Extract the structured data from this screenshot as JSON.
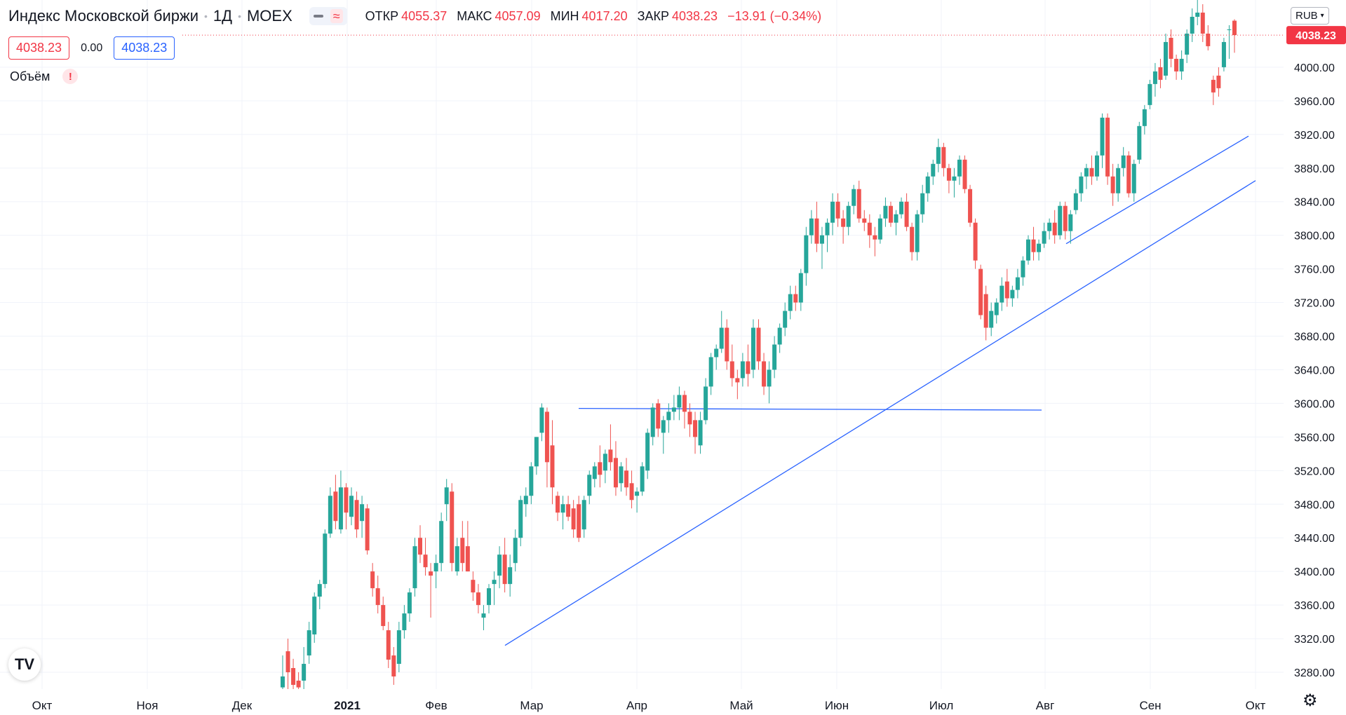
{
  "legend": {
    "title": "Индекс Московской биржи",
    "interval": "1Д",
    "exchange": "MOEX",
    "open_label": "ОТКР",
    "open": "4055.37",
    "high_label": "МАКС",
    "high": "4057.09",
    "low_label": "МИН",
    "low": "4017.20",
    "close_label": "ЗАКР",
    "close": "4038.23",
    "change": "−13.91 (−0.34%)",
    "bid": "4038.23",
    "spread": "0.00",
    "ask": "4038.23",
    "volume_label": "Объём",
    "warning_glyph": "!"
  },
  "toolbar": {
    "currency": "RUB",
    "logo": "TV",
    "settings_icon": "gear-icon"
  },
  "colors": {
    "up": "#26a69a",
    "down": "#ef5350",
    "trend": "#2962ff",
    "price_tag": "#f23645",
    "grid": "#f0f3fa"
  },
  "chart_data": {
    "type": "candlestick",
    "y_axis": {
      "min": 3260,
      "max": 4080,
      "ticks": [
        3280,
        3320,
        3360,
        3400,
        3440,
        3480,
        3520,
        3560,
        3600,
        3640,
        3680,
        3720,
        3760,
        3800,
        3840,
        3880,
        3920,
        3960,
        4000
      ]
    },
    "x_axis": {
      "labels": [
        "Окт",
        "Ноя",
        "Дек",
        "2021",
        "Фев",
        "Мар",
        "Апр",
        "Май",
        "Июн",
        "Июл",
        "Авг",
        "Сен",
        "Окт"
      ]
    },
    "last_price": "4038.23",
    "candles": [
      {
        "o": 3262,
        "h": 3300,
        "l": 3240,
        "c": 3275
      },
      {
        "o": 3305,
        "h": 3320,
        "l": 3250,
        "c": 3280
      },
      {
        "o": 3285,
        "h": 3296,
        "l": 3255,
        "c": 3265
      },
      {
        "o": 3270,
        "h": 3280,
        "l": 3250,
        "c": 3262
      },
      {
        "o": 3270,
        "h": 3310,
        "l": 3260,
        "c": 3290
      },
      {
        "o": 3300,
        "h": 3340,
        "l": 3290,
        "c": 3330
      },
      {
        "o": 3325,
        "h": 3375,
        "l": 3315,
        "c": 3370
      },
      {
        "o": 3370,
        "h": 3390,
        "l": 3355,
        "c": 3385
      },
      {
        "o": 3385,
        "h": 3450,
        "l": 3380,
        "c": 3445
      },
      {
        "o": 3445,
        "h": 3500,
        "l": 3440,
        "c": 3490
      },
      {
        "o": 3495,
        "h": 3515,
        "l": 3450,
        "c": 3460
      },
      {
        "o": 3450,
        "h": 3520,
        "l": 3445,
        "c": 3500
      },
      {
        "o": 3500,
        "h": 3505,
        "l": 3450,
        "c": 3470
      },
      {
        "o": 3465,
        "h": 3500,
        "l": 3455,
        "c": 3490
      },
      {
        "o": 3485,
        "h": 3495,
        "l": 3440,
        "c": 3450
      },
      {
        "o": 3460,
        "h": 3490,
        "l": 3440,
        "c": 3480
      },
      {
        "o": 3475,
        "h": 3480,
        "l": 3420,
        "c": 3425
      },
      {
        "o": 3400,
        "h": 3410,
        "l": 3370,
        "c": 3380
      },
      {
        "o": 3380,
        "h": 3395,
        "l": 3350,
        "c": 3360
      },
      {
        "o": 3360,
        "h": 3370,
        "l": 3330,
        "c": 3335
      },
      {
        "o": 3330,
        "h": 3340,
        "l": 3285,
        "c": 3295
      },
      {
        "o": 3300,
        "h": 3310,
        "l": 3265,
        "c": 3275
      },
      {
        "o": 3290,
        "h": 3340,
        "l": 3280,
        "c": 3330
      },
      {
        "o": 3330,
        "h": 3360,
        "l": 3320,
        "c": 3350
      },
      {
        "o": 3350,
        "h": 3380,
        "l": 3340,
        "c": 3375
      },
      {
        "o": 3380,
        "h": 3440,
        "l": 3370,
        "c": 3430
      },
      {
        "o": 3440,
        "h": 3455,
        "l": 3410,
        "c": 3420
      },
      {
        "o": 3420,
        "h": 3440,
        "l": 3395,
        "c": 3405
      },
      {
        "o": 3400,
        "h": 3410,
        "l": 3345,
        "c": 3395
      },
      {
        "o": 3400,
        "h": 3420,
        "l": 3380,
        "c": 3410
      },
      {
        "o": 3410,
        "h": 3470,
        "l": 3400,
        "c": 3460
      },
      {
        "o": 3480,
        "h": 3510,
        "l": 3460,
        "c": 3500
      },
      {
        "o": 3495,
        "h": 3505,
        "l": 3400,
        "c": 3410
      },
      {
        "o": 3400,
        "h": 3440,
        "l": 3395,
        "c": 3430
      },
      {
        "o": 3440,
        "h": 3460,
        "l": 3400,
        "c": 3410
      },
      {
        "o": 3430,
        "h": 3460,
        "l": 3400,
        "c": 3400
      },
      {
        "o": 3390,
        "h": 3400,
        "l": 3365,
        "c": 3375
      },
      {
        "o": 3375,
        "h": 3385,
        "l": 3350,
        "c": 3360
      },
      {
        "o": 3345,
        "h": 3360,
        "l": 3330,
        "c": 3350
      },
      {
        "o": 3360,
        "h": 3385,
        "l": 3350,
        "c": 3380
      },
      {
        "o": 3385,
        "h": 3400,
        "l": 3360,
        "c": 3390
      },
      {
        "o": 3395,
        "h": 3430,
        "l": 3380,
        "c": 3420
      },
      {
        "o": 3420,
        "h": 3440,
        "l": 3375,
        "c": 3385
      },
      {
        "o": 3385,
        "h": 3420,
        "l": 3370,
        "c": 3405
      },
      {
        "o": 3410,
        "h": 3450,
        "l": 3400,
        "c": 3440
      },
      {
        "o": 3440,
        "h": 3490,
        "l": 3430,
        "c": 3485
      },
      {
        "o": 3480,
        "h": 3500,
        "l": 3465,
        "c": 3490
      },
      {
        "o": 3490,
        "h": 3530,
        "l": 3480,
        "c": 3525
      },
      {
        "o": 3525,
        "h": 3560,
        "l": 3515,
        "c": 3560
      },
      {
        "o": 3565,
        "h": 3600,
        "l": 3555,
        "c": 3595
      },
      {
        "o": 3590,
        "h": 3595,
        "l": 3500,
        "c": 3530
      },
      {
        "o": 3550,
        "h": 3580,
        "l": 3480,
        "c": 3500
      },
      {
        "o": 3490,
        "h": 3495,
        "l": 3460,
        "c": 3470
      },
      {
        "o": 3470,
        "h": 3490,
        "l": 3450,
        "c": 3480
      },
      {
        "o": 3480,
        "h": 3490,
        "l": 3460,
        "c": 3465
      },
      {
        "o": 3475,
        "h": 3485,
        "l": 3440,
        "c": 3450
      },
      {
        "o": 3480,
        "h": 3490,
        "l": 3435,
        "c": 3440
      },
      {
        "o": 3450,
        "h": 3490,
        "l": 3440,
        "c": 3485
      },
      {
        "o": 3490,
        "h": 3520,
        "l": 3480,
        "c": 3515
      },
      {
        "o": 3510,
        "h": 3530,
        "l": 3500,
        "c": 3525
      },
      {
        "o": 3530,
        "h": 3550,
        "l": 3500,
        "c": 3515
      },
      {
        "o": 3520,
        "h": 3545,
        "l": 3505,
        "c": 3540
      },
      {
        "o": 3545,
        "h": 3575,
        "l": 3520,
        "c": 3530
      },
      {
        "o": 3535,
        "h": 3555,
        "l": 3490,
        "c": 3500
      },
      {
        "o": 3505,
        "h": 3530,
        "l": 3495,
        "c": 3525
      },
      {
        "o": 3520,
        "h": 3535,
        "l": 3490,
        "c": 3500
      },
      {
        "o": 3505,
        "h": 3520,
        "l": 3475,
        "c": 3485
      },
      {
        "o": 3490,
        "h": 3500,
        "l": 3470,
        "c": 3495
      },
      {
        "o": 3495,
        "h": 3530,
        "l": 3490,
        "c": 3525
      },
      {
        "o": 3520,
        "h": 3570,
        "l": 3510,
        "c": 3565
      },
      {
        "o": 3560,
        "h": 3600,
        "l": 3550,
        "c": 3595
      },
      {
        "o": 3600,
        "h": 3605,
        "l": 3560,
        "c": 3570
      },
      {
        "o": 3565,
        "h": 3585,
        "l": 3540,
        "c": 3580
      },
      {
        "o": 3580,
        "h": 3600,
        "l": 3565,
        "c": 3590
      },
      {
        "o": 3590,
        "h": 3610,
        "l": 3580,
        "c": 3595
      },
      {
        "o": 3595,
        "h": 3620,
        "l": 3580,
        "c": 3610
      },
      {
        "o": 3610,
        "h": 3615,
        "l": 3570,
        "c": 3590
      },
      {
        "o": 3590,
        "h": 3600,
        "l": 3560,
        "c": 3575
      },
      {
        "o": 3580,
        "h": 3590,
        "l": 3540,
        "c": 3560
      },
      {
        "o": 3550,
        "h": 3590,
        "l": 3540,
        "c": 3580
      },
      {
        "o": 3580,
        "h": 3630,
        "l": 3575,
        "c": 3620
      },
      {
        "o": 3620,
        "h": 3660,
        "l": 3610,
        "c": 3655
      },
      {
        "o": 3655,
        "h": 3670,
        "l": 3640,
        "c": 3665
      },
      {
        "o": 3665,
        "h": 3710,
        "l": 3660,
        "c": 3690
      },
      {
        "o": 3690,
        "h": 3700,
        "l": 3640,
        "c": 3650
      },
      {
        "o": 3650,
        "h": 3670,
        "l": 3620,
        "c": 3630
      },
      {
        "o": 3630,
        "h": 3640,
        "l": 3605,
        "c": 3625
      },
      {
        "o": 3630,
        "h": 3660,
        "l": 3620,
        "c": 3650
      },
      {
        "o": 3650,
        "h": 3670,
        "l": 3620,
        "c": 3635
      },
      {
        "o": 3640,
        "h": 3700,
        "l": 3630,
        "c": 3690
      },
      {
        "o": 3690,
        "h": 3700,
        "l": 3640,
        "c": 3650
      },
      {
        "o": 3650,
        "h": 3660,
        "l": 3610,
        "c": 3620
      },
      {
        "o": 3620,
        "h": 3650,
        "l": 3600,
        "c": 3640
      },
      {
        "o": 3640,
        "h": 3680,
        "l": 3630,
        "c": 3670
      },
      {
        "o": 3670,
        "h": 3695,
        "l": 3660,
        "c": 3690
      },
      {
        "o": 3690,
        "h": 3720,
        "l": 3680,
        "c": 3710
      },
      {
        "o": 3710,
        "h": 3740,
        "l": 3700,
        "c": 3730
      },
      {
        "o": 3730,
        "h": 3740,
        "l": 3710,
        "c": 3720
      },
      {
        "o": 3720,
        "h": 3760,
        "l": 3710,
        "c": 3755
      },
      {
        "o": 3755,
        "h": 3810,
        "l": 3740,
        "c": 3800
      },
      {
        "o": 3800,
        "h": 3830,
        "l": 3790,
        "c": 3820
      },
      {
        "o": 3820,
        "h": 3840,
        "l": 3780,
        "c": 3790
      },
      {
        "o": 3790,
        "h": 3810,
        "l": 3760,
        "c": 3800
      },
      {
        "o": 3800,
        "h": 3820,
        "l": 3780,
        "c": 3815
      },
      {
        "o": 3815,
        "h": 3850,
        "l": 3800,
        "c": 3840
      },
      {
        "o": 3840,
        "h": 3850,
        "l": 3810,
        "c": 3820
      },
      {
        "o": 3820,
        "h": 3830,
        "l": 3790,
        "c": 3810
      },
      {
        "o": 3810,
        "h": 3840,
        "l": 3800,
        "c": 3835
      },
      {
        "o": 3835,
        "h": 3860,
        "l": 3825,
        "c": 3855
      },
      {
        "o": 3855,
        "h": 3865,
        "l": 3815,
        "c": 3820
      },
      {
        "o": 3820,
        "h": 3830,
        "l": 3805,
        "c": 3815
      },
      {
        "o": 3815,
        "h": 3825,
        "l": 3785,
        "c": 3800
      },
      {
        "o": 3800,
        "h": 3810,
        "l": 3775,
        "c": 3795
      },
      {
        "o": 3795,
        "h": 3825,
        "l": 3790,
        "c": 3820
      },
      {
        "o": 3820,
        "h": 3845,
        "l": 3810,
        "c": 3835
      },
      {
        "o": 3835,
        "h": 3840,
        "l": 3810,
        "c": 3815
      },
      {
        "o": 3815,
        "h": 3830,
        "l": 3800,
        "c": 3825
      },
      {
        "o": 3825,
        "h": 3845,
        "l": 3820,
        "c": 3840
      },
      {
        "o": 3840,
        "h": 3850,
        "l": 3805,
        "c": 3810
      },
      {
        "o": 3810,
        "h": 3815,
        "l": 3770,
        "c": 3780
      },
      {
        "o": 3780,
        "h": 3830,
        "l": 3770,
        "c": 3825
      },
      {
        "o": 3825,
        "h": 3860,
        "l": 3815,
        "c": 3850
      },
      {
        "o": 3850,
        "h": 3875,
        "l": 3840,
        "c": 3870
      },
      {
        "o": 3870,
        "h": 3890,
        "l": 3860,
        "c": 3885
      },
      {
        "o": 3885,
        "h": 3915,
        "l": 3875,
        "c": 3905
      },
      {
        "o": 3905,
        "h": 3910,
        "l": 3870,
        "c": 3880
      },
      {
        "o": 3880,
        "h": 3885,
        "l": 3850,
        "c": 3865
      },
      {
        "o": 3865,
        "h": 3880,
        "l": 3845,
        "c": 3870
      },
      {
        "o": 3870,
        "h": 3895,
        "l": 3860,
        "c": 3890
      },
      {
        "o": 3890,
        "h": 3895,
        "l": 3850,
        "c": 3855
      },
      {
        "o": 3855,
        "h": 3860,
        "l": 3810,
        "c": 3815
      },
      {
        "o": 3815,
        "h": 3820,
        "l": 3760,
        "c": 3770
      },
      {
        "o": 3760,
        "h": 3765,
        "l": 3700,
        "c": 3705
      },
      {
        "o": 3730,
        "h": 3740,
        "l": 3675,
        "c": 3690
      },
      {
        "o": 3690,
        "h": 3720,
        "l": 3680,
        "c": 3710
      },
      {
        "o": 3705,
        "h": 3725,
        "l": 3695,
        "c": 3720
      },
      {
        "o": 3720,
        "h": 3750,
        "l": 3710,
        "c": 3740
      },
      {
        "o": 3745,
        "h": 3760,
        "l": 3715,
        "c": 3725
      },
      {
        "o": 3725,
        "h": 3740,
        "l": 3715,
        "c": 3735
      },
      {
        "o": 3735,
        "h": 3760,
        "l": 3725,
        "c": 3750
      },
      {
        "o": 3750,
        "h": 3775,
        "l": 3740,
        "c": 3770
      },
      {
        "o": 3770,
        "h": 3800,
        "l": 3765,
        "c": 3795
      },
      {
        "o": 3795,
        "h": 3810,
        "l": 3770,
        "c": 3780
      },
      {
        "o": 3780,
        "h": 3795,
        "l": 3770,
        "c": 3790
      },
      {
        "o": 3790,
        "h": 3815,
        "l": 3785,
        "c": 3805
      },
      {
        "o": 3805,
        "h": 3820,
        "l": 3795,
        "c": 3815
      },
      {
        "o": 3815,
        "h": 3830,
        "l": 3790,
        "c": 3800
      },
      {
        "o": 3800,
        "h": 3840,
        "l": 3795,
        "c": 3835
      },
      {
        "o": 3835,
        "h": 3840,
        "l": 3795,
        "c": 3805
      },
      {
        "o": 3805,
        "h": 3830,
        "l": 3790,
        "c": 3825
      },
      {
        "o": 3830,
        "h": 3855,
        "l": 3825,
        "c": 3850
      },
      {
        "o": 3850,
        "h": 3875,
        "l": 3840,
        "c": 3870
      },
      {
        "o": 3870,
        "h": 3885,
        "l": 3855,
        "c": 3880
      },
      {
        "o": 3880,
        "h": 3895,
        "l": 3860,
        "c": 3870
      },
      {
        "o": 3870,
        "h": 3900,
        "l": 3865,
        "c": 3895
      },
      {
        "o": 3895,
        "h": 3945,
        "l": 3880,
        "c": 3940
      },
      {
        "o": 3940,
        "h": 3945,
        "l": 3860,
        "c": 3870
      },
      {
        "o": 3870,
        "h": 3885,
        "l": 3835,
        "c": 3850
      },
      {
        "o": 3850,
        "h": 3885,
        "l": 3840,
        "c": 3880
      },
      {
        "o": 3880,
        "h": 3905,
        "l": 3870,
        "c": 3895
      },
      {
        "o": 3895,
        "h": 3900,
        "l": 3845,
        "c": 3850
      },
      {
        "o": 3850,
        "h": 3890,
        "l": 3840,
        "c": 3885
      },
      {
        "o": 3890,
        "h": 3935,
        "l": 3885,
        "c": 3930
      },
      {
        "o": 3930,
        "h": 3955,
        "l": 3920,
        "c": 3950
      },
      {
        "o": 3955,
        "h": 3985,
        "l": 3950,
        "c": 3980
      },
      {
        "o": 3980,
        "h": 4005,
        "l": 3965,
        "c": 3995
      },
      {
        "o": 4000,
        "h": 4010,
        "l": 3975,
        "c": 3985
      },
      {
        "o": 3990,
        "h": 4040,
        "l": 3985,
        "c": 4030
      },
      {
        "o": 4035,
        "h": 4045,
        "l": 4000,
        "c": 4010
      },
      {
        "o": 4010,
        "h": 4015,
        "l": 3985,
        "c": 3995
      },
      {
        "o": 3995,
        "h": 4020,
        "l": 3985,
        "c": 4010
      },
      {
        "o": 4015,
        "h": 4045,
        "l": 4005,
        "c": 4040
      },
      {
        "o": 4040,
        "h": 4070,
        "l": 4030,
        "c": 4060
      },
      {
        "o": 4060,
        "h": 4080,
        "l": 4050,
        "c": 4065
      },
      {
        "o": 4065,
        "h": 4075,
        "l": 4030,
        "c": 4040
      },
      {
        "o": 4040,
        "h": 4050,
        "l": 4020,
        "c": 4025
      },
      {
        "o": 3985,
        "h": 3990,
        "l": 3955,
        "c": 3970
      },
      {
        "o": 3990,
        "h": 4000,
        "l": 3965,
        "c": 3975
      },
      {
        "o": 4000,
        "h": 4035,
        "l": 3995,
        "c": 4030
      },
      {
        "o": 4045,
        "h": 4050,
        "l": 4010,
        "c": 4045
      },
      {
        "o": 4055.37,
        "h": 4057.09,
        "l": 4017.2,
        "c": 4038.23
      }
    ]
  }
}
